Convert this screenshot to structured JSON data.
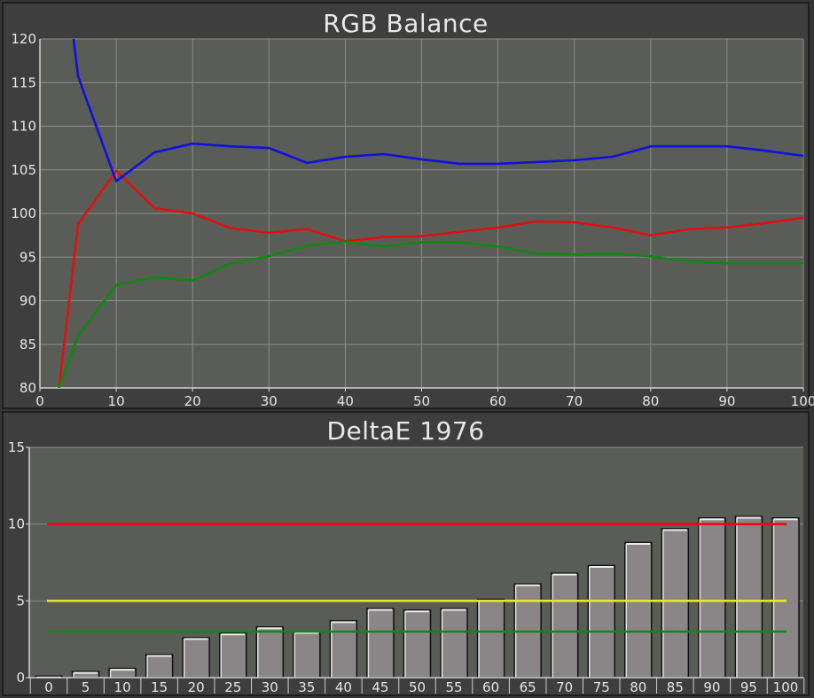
{
  "charts": {
    "rgb": {
      "title": "RGB Balance"
    },
    "deltae": {
      "title": "DeltaE 1976"
    }
  },
  "chart_data": [
    {
      "type": "line",
      "title": "RGB Balance",
      "xlim": [
        0,
        100
      ],
      "ylim": [
        80,
        120
      ],
      "x_ticks": [
        0,
        10,
        20,
        30,
        40,
        50,
        60,
        70,
        80,
        90,
        100
      ],
      "y_ticks": [
        80,
        85,
        90,
        95,
        100,
        105,
        110,
        115,
        120
      ],
      "grid": true,
      "series": [
        {
          "color": "#e01010",
          "x": [
            2.5,
            5,
            10,
            15,
            20,
            25,
            30,
            35,
            40,
            45,
            50,
            55,
            60,
            65,
            70,
            75,
            80,
            85,
            90,
            95,
            100
          ],
          "y": [
            80,
            98.8,
            104.9,
            100.6,
            100,
            98.3,
            97.8,
            98.2,
            96.8,
            97.3,
            97.4,
            97.9,
            98.4,
            99.1,
            99,
            98.4,
            97.5,
            98.2,
            98.4,
            98.9,
            99.5
          ]
        },
        {
          "color": "#118811",
          "x": [
            2.5,
            5,
            10,
            15,
            20,
            25,
            30,
            35,
            40,
            45,
            50,
            55,
            60,
            65,
            70,
            75,
            80,
            85,
            90,
            95,
            100
          ],
          "y": [
            80,
            86,
            91.8,
            92.7,
            92.3,
            94.3,
            95.1,
            96.3,
            96.8,
            96.2,
            96.7,
            96.7,
            96.2,
            95.4,
            95.3,
            95.4,
            95.1,
            94.5,
            94.3,
            94.3,
            94.3
          ]
        },
        {
          "color": "#1010e0",
          "x": [
            4.4,
            5,
            10,
            15,
            20,
            25,
            30,
            35,
            40,
            45,
            50,
            55,
            60,
            65,
            70,
            75,
            80,
            85,
            90,
            95,
            100
          ],
          "y": [
            120,
            115.7,
            103.7,
            107,
            108,
            107.7,
            107.5,
            105.8,
            106.5,
            106.8,
            106.2,
            105.7,
            105.7,
            105.9,
            106.1,
            106.5,
            107.7,
            107.7,
            107.7,
            107.2,
            106.6
          ]
        }
      ]
    },
    {
      "type": "bar",
      "title": "DeltaE 1976",
      "categories": [
        "0",
        "5",
        "10",
        "15",
        "20",
        "25",
        "30",
        "35",
        "40",
        "45",
        "50",
        "55",
        "60",
        "65",
        "70",
        "75",
        "80",
        "85",
        "90",
        "95",
        "100"
      ],
      "values": [
        0.1,
        0.4,
        0.6,
        1.5,
        2.6,
        2.9,
        3.3,
        3.0,
        3.7,
        4.5,
        4.4,
        4.5,
        5.1,
        6.1,
        6.8,
        7.3,
        8.8,
        9.7,
        10.4,
        10.5,
        10.4
      ],
      "ylim": [
        0,
        15
      ],
      "y_ticks": [
        0,
        5,
        10,
        15
      ],
      "grid": true,
      "thresholds": [
        {
          "value": 10,
          "color": "#e01010"
        },
        {
          "value": 5,
          "color": "#e8e820"
        },
        {
          "value": 3,
          "color": "#118811"
        }
      ]
    }
  ]
}
